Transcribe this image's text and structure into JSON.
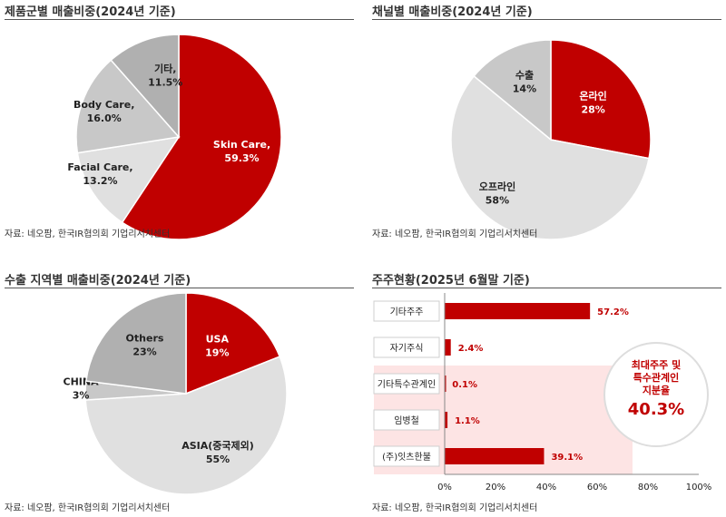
{
  "source": "자료: 네오팜, 한국IR협의회 기업리서치센터",
  "colors": {
    "red": "#c00000",
    "light_gray": "#e0e0e0",
    "mid_gray": "#c8c8c8",
    "dark_gray": "#b0b0b0",
    "highlight": "#fde4e4"
  },
  "chart_data": [
    {
      "type": "pie",
      "title": "제품군별 매출비중(2024년 기준)",
      "unit": "%",
      "slices": [
        {
          "name": "Skin Care,",
          "value": 59.3,
          "label": "59.3%",
          "color": "#c00000"
        },
        {
          "name": "Facial Care,",
          "value": 13.2,
          "label": "13.2%",
          "color": "#e0e0e0"
        },
        {
          "name": "Body Care,",
          "value": 16.0,
          "label": "16.0%",
          "color": "#c8c8c8"
        },
        {
          "name": "기타,",
          "value": 11.5,
          "label": "11.5%",
          "color": "#b0b0b0"
        }
      ]
    },
    {
      "type": "pie",
      "title": "채널별 매출비중(2024년 기준)",
      "unit": "%",
      "slices": [
        {
          "name": "온라인",
          "value": 28,
          "label": "28%",
          "color": "#c00000"
        },
        {
          "name": "오프라인",
          "value": 58,
          "label": "58%",
          "color": "#e0e0e0"
        },
        {
          "name": "수출",
          "value": 14,
          "label": "14%",
          "color": "#c8c8c8"
        }
      ]
    },
    {
      "type": "pie",
      "title": "수출 지역별 매출비중(2024년 기준)",
      "unit": "%",
      "slices": [
        {
          "name": "USA",
          "value": 19,
          "label": "19%",
          "color": "#c00000"
        },
        {
          "name": "ASIA(중국제외)",
          "value": 55,
          "label": "55%",
          "color": "#e0e0e0"
        },
        {
          "name": "CHINA",
          "value": 3,
          "label": "3%",
          "color": "#c8c8c8"
        },
        {
          "name": "Others",
          "value": 23,
          "label": "23%",
          "color": "#b0b0b0"
        }
      ]
    },
    {
      "type": "bar",
      "orientation": "horizontal",
      "title": "주주현황(2025년 6월말 기준)",
      "categories": [
        "기타주주",
        "자기주식",
        "기타특수관계인",
        "임병철",
        "(주)잇츠한불"
      ],
      "values": [
        57.2,
        2.4,
        0.1,
        1.1,
        39.1
      ],
      "labels": [
        "57.2%",
        "2.4%",
        "0.1%",
        "1.1%",
        "39.1%"
      ],
      "xlim": [
        0,
        100
      ],
      "xticks": [
        "0%",
        "20%",
        "40%",
        "60%",
        "80%",
        "100%"
      ],
      "highlight_categories": [
        "기타특수관계인",
        "임병철",
        "(주)잇츠한불"
      ],
      "callout": {
        "line1": "최대주주 및",
        "line2": "특수관계인",
        "line3": "지분율",
        "value": "40.3%"
      }
    }
  ]
}
